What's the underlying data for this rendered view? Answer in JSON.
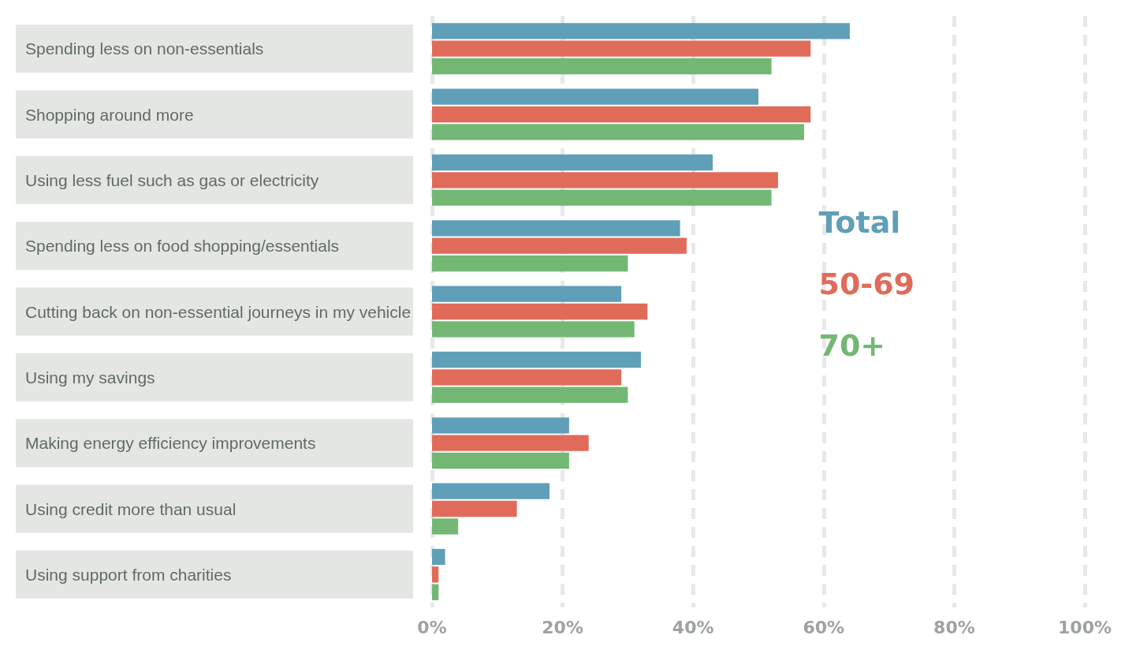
{
  "chart_data": {
    "type": "bar",
    "orientation": "horizontal",
    "categories": [
      "Spending less on non-essentials",
      "Shopping around more",
      "Using less fuel such as gas or electricity",
      "Spending less on food shopping/essentials",
      "Cutting back on non-essential journeys in my vehicle",
      "Using my savings",
      "Making energy efficiency improvements",
      "Using credit more than usual",
      "Using support from charities"
    ],
    "series": [
      {
        "name": "Total",
        "color": "#5f9fb8",
        "values": [
          64,
          50,
          43,
          38,
          29,
          32,
          21,
          18,
          2
        ]
      },
      {
        "name": "50-69",
        "color": "#e06b5a",
        "values": [
          58,
          58,
          53,
          39,
          33,
          29,
          24,
          13,
          1
        ]
      },
      {
        "name": "70+",
        "color": "#72b874",
        "values": [
          52,
          57,
          52,
          30,
          31,
          30,
          21,
          4,
          1
        ]
      }
    ],
    "xlim": [
      0,
      100
    ],
    "xticks": [
      {
        "value": 0,
        "label": "0%"
      },
      {
        "value": 20,
        "label": "20%"
      },
      {
        "value": 40,
        "label": "40%"
      },
      {
        "value": 60,
        "label": "60%"
      },
      {
        "value": 80,
        "label": "80%"
      },
      {
        "value": 100,
        "label": "100%"
      }
    ],
    "grid": "x",
    "legend": "right"
  }
}
